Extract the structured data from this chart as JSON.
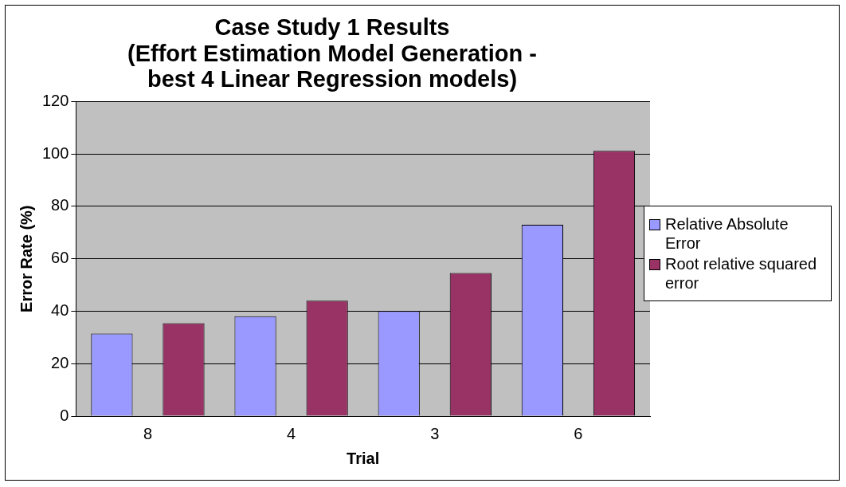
{
  "chart_data": {
    "type": "bar",
    "title": "Case Study 1 Results\n(Effort Estimation Model Generation -\nbest 4 Linear Regression models)",
    "xlabel": "Trial",
    "ylabel": "Error Rate (%)",
    "categories": [
      "8",
      "4",
      "3",
      "6"
    ],
    "series": [
      {
        "name": "Relative Absolute Error",
        "color": "#9999ff",
        "values": [
          31.5,
          38.1,
          40.1,
          73.0
        ]
      },
      {
        "name": "Root relative squared error",
        "color": "#993366",
        "values": [
          35.4,
          44.0,
          54.6,
          101.2
        ]
      }
    ],
    "ylim": [
      0,
      120
    ],
    "yticks": [
      0,
      20,
      40,
      60,
      80,
      100,
      120
    ],
    "grid": "y",
    "legend": "right"
  }
}
